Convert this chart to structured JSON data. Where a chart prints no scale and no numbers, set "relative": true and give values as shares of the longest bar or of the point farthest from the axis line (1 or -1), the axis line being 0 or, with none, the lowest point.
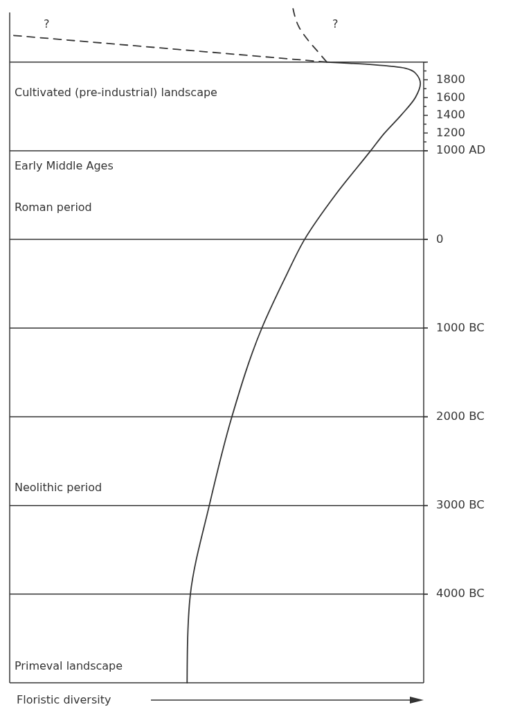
{
  "chart_data": {
    "type": "line",
    "orientation": "horizontal",
    "relative": true,
    "xlabel": "Floristic diversity",
    "tick_labels": "y",
    "ylim": [
      -5000,
      2700
    ],
    "yticks": [
      {
        "value": 2000,
        "label": null
      },
      {
        "value": 1900,
        "label": null
      },
      1800,
      {
        "value": 1700,
        "label": null
      },
      1600,
      {
        "value": 1500,
        "label": null
      },
      1400,
      {
        "value": 1300,
        "label": null
      },
      1200,
      {
        "value": 1100,
        "label": null
      },
      {
        "value": 1000,
        "label": "1000 AD"
      },
      0,
      {
        "value": -1000,
        "label": "1000 BC"
      },
      {
        "value": -2000,
        "label": "2000 BC"
      },
      {
        "value": -3000,
        "label": "3000 BC"
      },
      {
        "value": -4000,
        "label": "4000 BC"
      }
    ],
    "ref_lines": [
      {
        "axis": "y",
        "value": 2000
      },
      {
        "axis": "y",
        "value": 1000
      },
      {
        "axis": "y",
        "value": 0
      },
      {
        "axis": "y",
        "value": -1000
      },
      {
        "axis": "y",
        "value": -2000
      },
      {
        "axis": "y",
        "value": -3000
      },
      {
        "axis": "y",
        "value": -4000
      }
    ],
    "series": [
      {
        "color": "#333333",
        "line_style": "solid",
        "x": [
          -5000,
          -4570,
          -4000,
          -3000,
          -2000,
          -1000,
          -430,
          0,
          508,
          1000,
          1195,
          1406,
          1602,
          1758,
          1875,
          1930,
          1969,
          2000
        ],
        "values": [
          0.432,
          0.433,
          0.44,
          0.486,
          0.541,
          0.614,
          0.671,
          0.718,
          0.794,
          0.879,
          0.912,
          0.954,
          0.988,
          1.0,
          0.988,
          0.963,
          0.887,
          0.772
        ]
      },
      {
        "color": "#333333",
        "line_style": "dashed",
        "x": [
          2000,
          2300
        ],
        "values": [
          0.772,
          0.01
        ]
      },
      {
        "color": "#333333",
        "line_style": "dashed",
        "x": [
          2000,
          2109,
          2227,
          2390,
          2601
        ],
        "values": [
          0.772,
          0.752,
          0.73,
          0.705,
          0.69
        ]
      }
    ],
    "annotations": [
      "?",
      "?",
      "Cultivated (pre-industrial) landscape",
      "Early Middle Ages",
      "Roman period",
      "Neolithic period",
      "Primeval landscape"
    ]
  }
}
